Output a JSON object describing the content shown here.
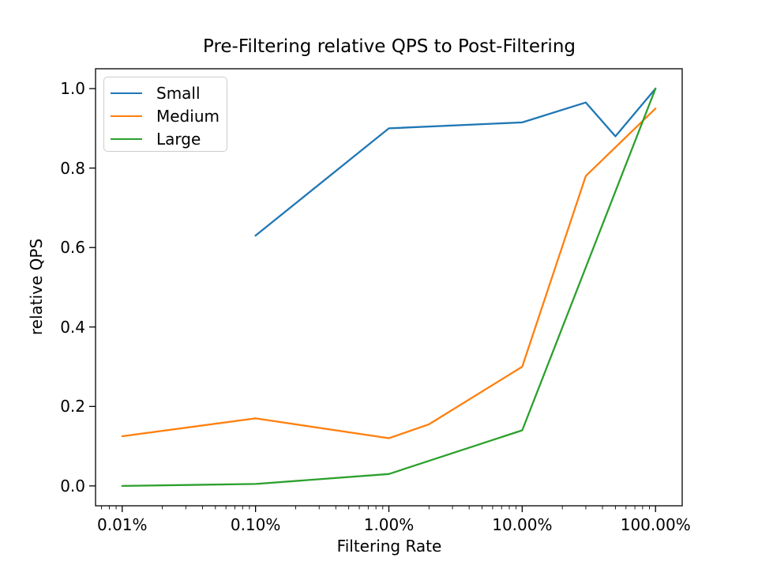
{
  "chart_data": {
    "type": "line",
    "title": "Pre-Filtering relative QPS to Post-Filtering",
    "xlabel": "Filtering Rate",
    "ylabel": "relative QPS",
    "x_scale": "log",
    "x_unit": "percent",
    "xlim_log10": [
      -2.2,
      2.2
    ],
    "ylim": [
      -0.05,
      1.05
    ],
    "grid": false,
    "legend_position": "upper left",
    "x_ticks": {
      "values": [
        0.01,
        0.1,
        1,
        10,
        100
      ],
      "labels": [
        "0.01%",
        "0.10%",
        "1.00%",
        "10.00%",
        "100.00%"
      ]
    },
    "y_ticks": {
      "values": [
        0.0,
        0.2,
        0.4,
        0.6,
        0.8,
        1.0
      ],
      "labels": [
        "0.0",
        "0.2",
        "0.4",
        "0.6",
        "0.8",
        "1.0"
      ]
    },
    "series": [
      {
        "name": "Small",
        "color": "#1f77b4",
        "x": [
          0.1,
          1,
          10,
          30,
          50,
          100
        ],
        "y": [
          0.63,
          0.9,
          0.915,
          0.965,
          0.88,
          1.0
        ]
      },
      {
        "name": "Medium",
        "color": "#ff7f0e",
        "x": [
          0.01,
          0.1,
          1,
          2,
          10,
          30,
          100
        ],
        "y": [
          0.125,
          0.17,
          0.12,
          0.155,
          0.3,
          0.78,
          0.95
        ]
      },
      {
        "name": "Large",
        "color": "#2ca02c",
        "x": [
          0.01,
          0.1,
          1,
          10,
          100
        ],
        "y": [
          0.0,
          0.005,
          0.03,
          0.14,
          1.0
        ]
      }
    ]
  }
}
